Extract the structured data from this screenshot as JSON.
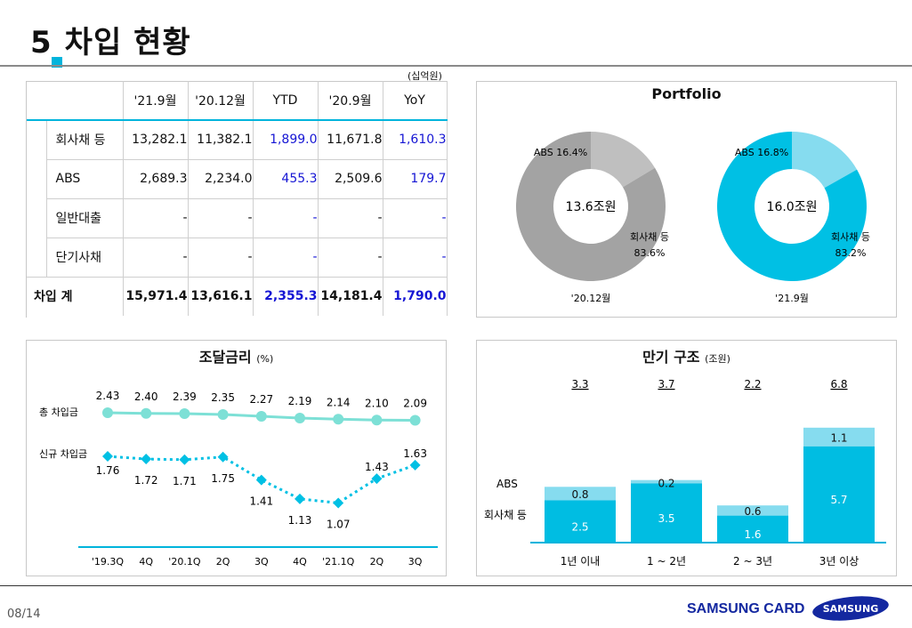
{
  "header": {
    "number": "5",
    "title": "차입 현황",
    "unit": "(십억원)"
  },
  "table": {
    "columns": [
      "'21.9월",
      "'20.12월",
      "YTD",
      "'20.9월",
      "YoY"
    ],
    "rows": [
      {
        "label": "회사채 등",
        "values": [
          "13,282.1",
          "11,382.1",
          "1,899.0",
          "11,671.8",
          "1,610.3"
        ]
      },
      {
        "label": "ABS",
        "values": [
          "2,689.3",
          "2,234.0",
          "455.3",
          "2,509.6",
          "179.7"
        ]
      },
      {
        "label": "일반대출",
        "values": [
          "-",
          "-",
          "-",
          "-",
          "-"
        ]
      },
      {
        "label": "단기사채",
        "values": [
          "-",
          "-",
          "-",
          "-",
          "-"
        ]
      }
    ],
    "total": {
      "label": "차입 계",
      "values": [
        "15,971.4",
        "13,616.1",
        "2,355.3",
        "14,181.4",
        "1,790.0"
      ]
    }
  },
  "portfolio": {
    "title": "Portfolio"
  },
  "rates": {
    "title": "조달금리",
    "unit": "(%)"
  },
  "maturity": {
    "title": "만기 구조",
    "unit": "(조원)"
  },
  "chart_data": [
    {
      "type": "pie",
      "title": "Portfolio",
      "subtitle": "'20.12월",
      "center_label": "13.6조원",
      "slices": [
        {
          "label": "ABS",
          "value": 16.4
        },
        {
          "label": "회사채 등",
          "value": 83.6
        }
      ],
      "colors": [
        "#bfbfbf",
        "#a3a3a3"
      ]
    },
    {
      "type": "pie",
      "subtitle": "'21.9월",
      "center_label": "16.0조원",
      "slices": [
        {
          "label": "ABS",
          "value": 16.8
        },
        {
          "label": "회사채 등",
          "value": 83.2
        }
      ],
      "colors": [
        "#86dcef",
        "#00c0e4"
      ]
    },
    {
      "type": "line",
      "title": "조달금리",
      "unit": "(%)",
      "categories": [
        "'19.3Q",
        "4Q",
        "'20.1Q",
        "2Q",
        "3Q",
        "4Q",
        "'21.1Q",
        "2Q",
        "3Q"
      ],
      "series": [
        {
          "name": "총 차입금",
          "values": [
            2.43,
            2.4,
            2.39,
            2.35,
            2.27,
            2.19,
            2.14,
            2.1,
            2.09
          ],
          "color": "#7de0d6",
          "style": "solid"
        },
        {
          "name": "신규 차입금",
          "values": [
            1.76,
            1.72,
            1.71,
            1.75,
            1.41,
            1.13,
            1.07,
            1.43,
            1.63
          ],
          "color": "#00c0e4",
          "style": "dotted"
        }
      ]
    },
    {
      "type": "bar",
      "stacked": true,
      "title": "만기 구조",
      "unit": "(조원)",
      "categories": [
        "1년 이내",
        "1 ~ 2년",
        "2 ~ 3년",
        "3년 이상"
      ],
      "totals": [
        "3.3",
        "3.7",
        "2.2",
        "6.8"
      ],
      "series": [
        {
          "name": "회사채 등",
          "values": [
            2.5,
            3.5,
            1.6,
            5.7
          ],
          "color": "#00bde2"
        },
        {
          "name": "ABS",
          "values": [
            0.8,
            0.2,
            0.6,
            1.1
          ],
          "color": "#86dcef"
        }
      ]
    }
  ],
  "footer": {
    "page": "08/14",
    "brand": "SAMSUNG CARD",
    "logo": "SAMSUNG"
  }
}
